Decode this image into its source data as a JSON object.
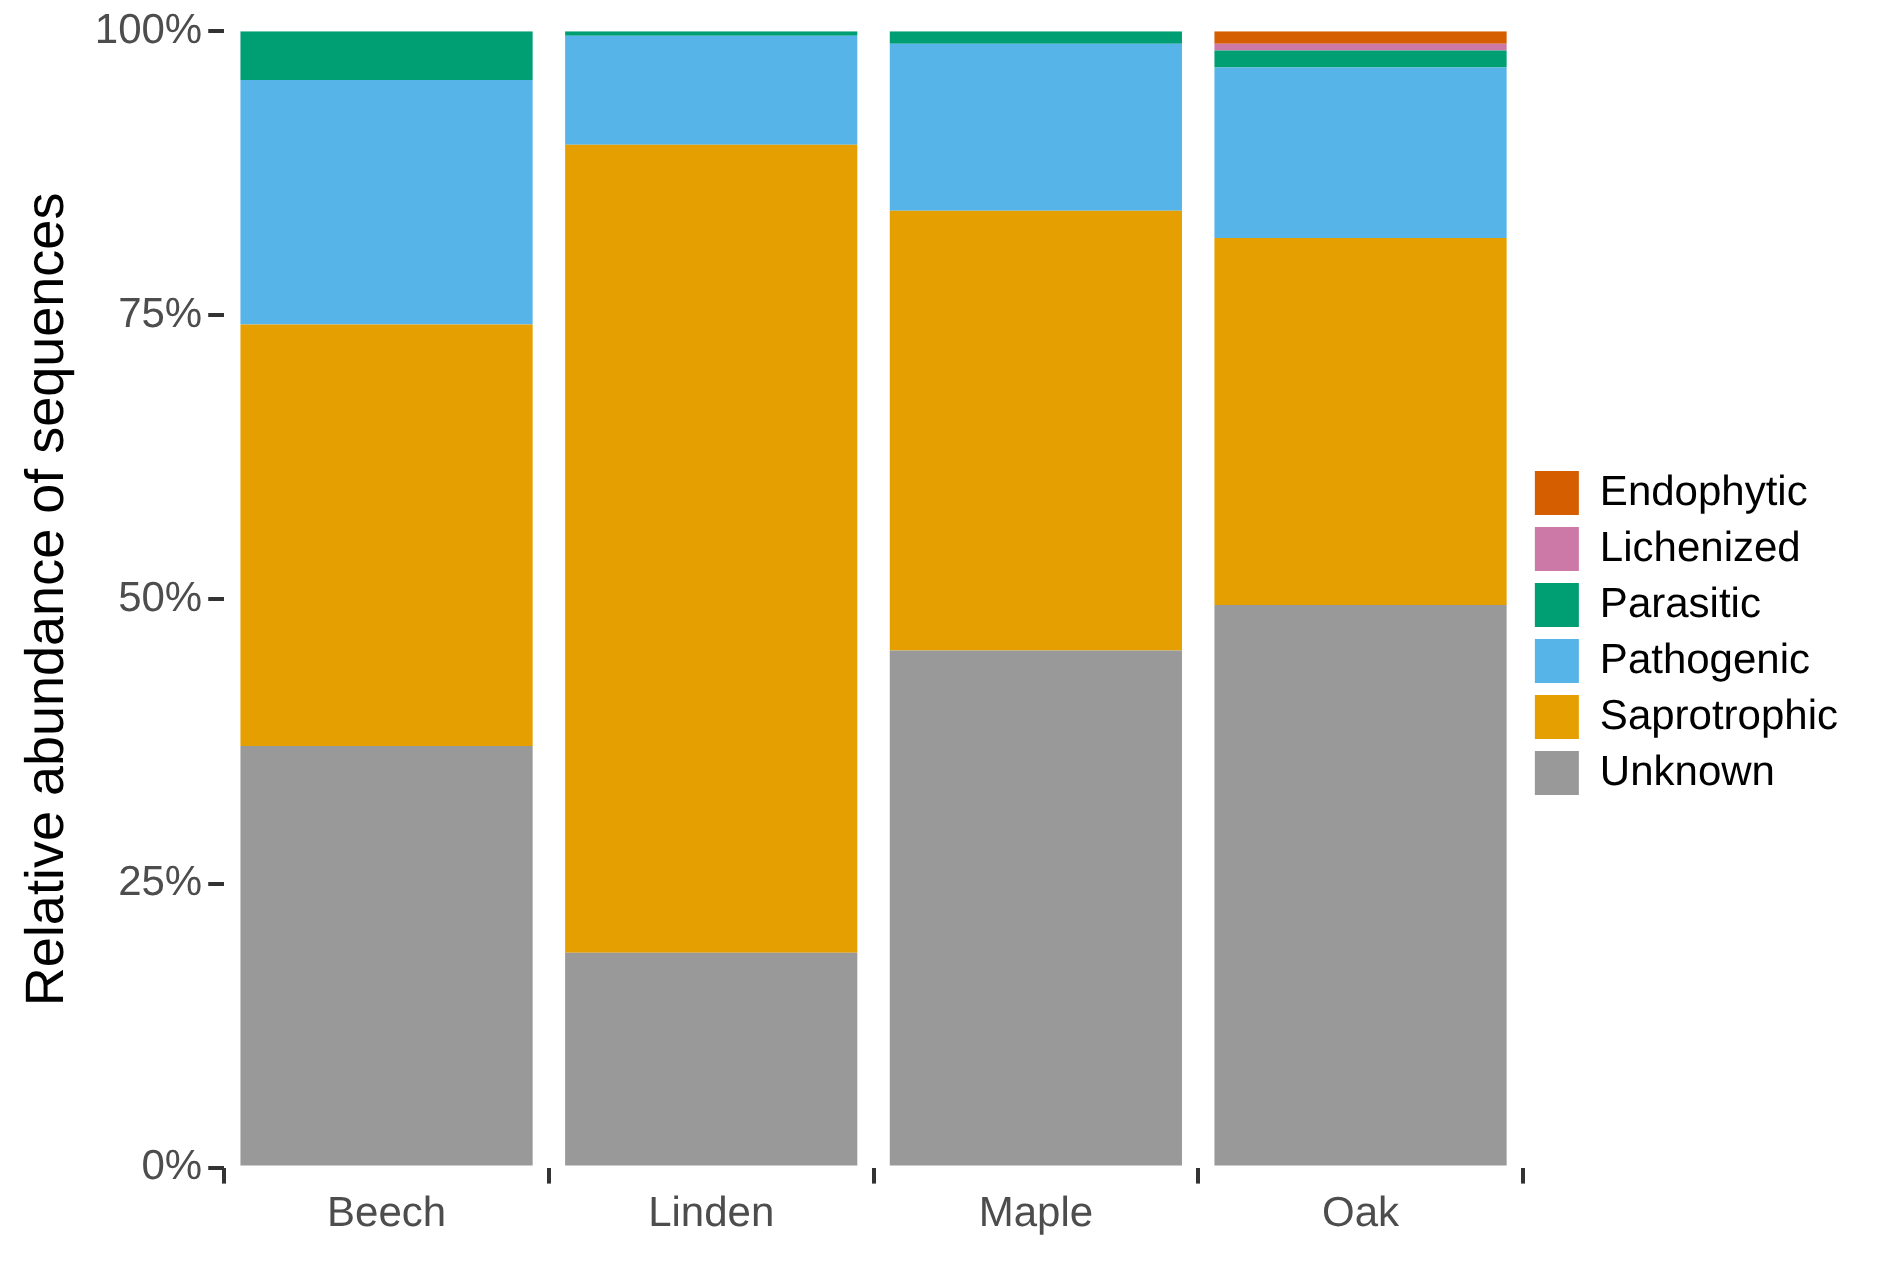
{
  "chart_data": {
    "type": "bar",
    "stacked": true,
    "ylabel": "Relative abundance of sequences",
    "categories": [
      "Beech",
      "Linden",
      "Maple",
      "Oak"
    ],
    "series": [
      {
        "name": "Unknown",
        "color": "#999999",
        "values": [
          37.1,
          18.9,
          45.5,
          49.5
        ]
      },
      {
        "name": "Saprotrophic",
        "color": "#e69f00",
        "values": [
          37.1,
          71.1,
          38.7,
          32.3
        ]
      },
      {
        "name": "Pathogenic",
        "color": "#56b4e9",
        "values": [
          21.5,
          9.6,
          14.7,
          15.0
        ]
      },
      {
        "name": "Parasitic",
        "color": "#009e73",
        "values": [
          4.3,
          0.4,
          1.1,
          1.5
        ]
      },
      {
        "name": "Lichenized",
        "color": "#cc79a7",
        "values": [
          0,
          0,
          0,
          0.6
        ]
      },
      {
        "name": "Endophytic",
        "color": "#d55e00",
        "values": [
          0,
          0,
          0,
          1.1
        ]
      }
    ],
    "ylim": [
      0,
      100
    ],
    "yticks": [
      {
        "value": 0,
        "label": "0%"
      },
      {
        "value": 25,
        "label": "25%"
      },
      {
        "value": 50,
        "label": "50%"
      },
      {
        "value": 75,
        "label": "75%"
      },
      {
        "value": 100,
        "label": "100%"
      }
    ],
    "grid": false,
    "legend": "right"
  }
}
